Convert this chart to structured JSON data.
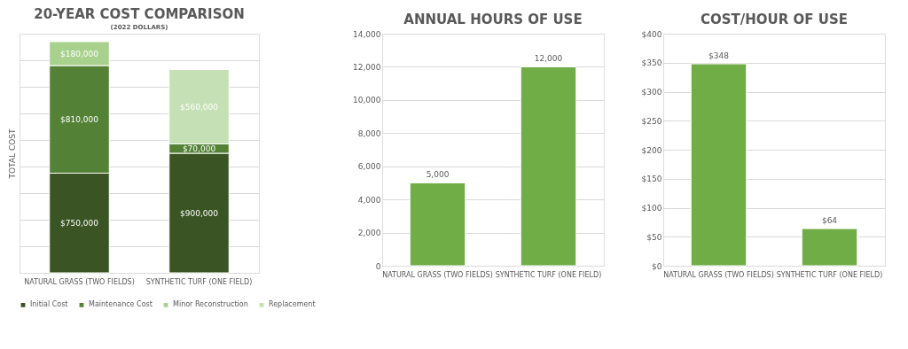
{
  "chart_data": [
    {
      "type": "bar",
      "title": "20-YEAR COST COMPARISON",
      "subtitle": "(2022 DOLLARS)",
      "ylabel": "TOTAL COST",
      "stacked": true,
      "categories": [
        "NATURAL GRASS (TWO FIELDS)",
        "SYNTHETIC TURF (ONE FIELD)"
      ],
      "series": [
        {
          "name": "Initial Cost",
          "color": "#3a5423",
          "values": [
            750000,
            900000
          ],
          "value_labels": [
            "$750,000",
            "$900,000"
          ]
        },
        {
          "name": "Maintenance Cost",
          "color": "#538135",
          "values": [
            810000,
            70000
          ],
          "value_labels": [
            "$810,000",
            "$70,000"
          ]
        },
        {
          "name": "Minor Reconstruction",
          "color": "#a9d18e",
          "values": [
            180000,
            null
          ],
          "value_labels": [
            "$180,000",
            null
          ]
        },
        {
          "name": "Replacement",
          "color": "#c5e0b4",
          "values": [
            null,
            560000
          ],
          "value_labels": [
            null,
            "$560,000"
          ]
        }
      ],
      "tick_labels": "x",
      "grid": "y",
      "legend": "bottom"
    },
    {
      "type": "bar",
      "title": "ANNUAL HOURS OF USE",
      "categories": [
        "NATURAL GRASS (TWO FIELDS)",
        "SYNTHETIC TURF (ONE FIELD)"
      ],
      "values": [
        5000,
        12000
      ],
      "color": "#70ad47",
      "value_labels": [
        "5,000",
        "12,000"
      ],
      "ylim": [
        0,
        14000
      ],
      "yticks": [
        0,
        {
          "value": 2000,
          "label": "2,000"
        },
        {
          "value": 4000,
          "label": "4,000"
        },
        {
          "value": 6000,
          "label": "6,000"
        },
        {
          "value": 8000,
          "label": "8,000"
        },
        {
          "value": 10000,
          "label": "10,000"
        },
        {
          "value": 12000,
          "label": "12,000"
        },
        {
          "value": 14000,
          "label": "14,000"
        }
      ],
      "grid": "y"
    },
    {
      "type": "bar",
      "title": "COST/HOUR OF USE",
      "categories": [
        "NATURAL GRASS (TWO FIELDS)",
        "SYNTHETIC TURF (ONE FIELD)"
      ],
      "values": [
        348,
        64
      ],
      "color": "#70ad47",
      "value_labels": [
        "$348",
        "$64"
      ],
      "ylim": [
        0,
        400
      ],
      "yticks": [
        {
          "value": 0,
          "label": "$0"
        },
        {
          "value": 50,
          "label": "$50"
        },
        {
          "value": 100,
          "label": "$100"
        },
        {
          "value": 150,
          "label": "$150"
        },
        {
          "value": 200,
          "label": "$200"
        },
        {
          "value": 250,
          "label": "$250"
        },
        {
          "value": 300,
          "label": "$300"
        },
        {
          "value": 350,
          "label": "$350"
        },
        {
          "value": 400,
          "label": "$400"
        }
      ],
      "grid": "y"
    }
  ]
}
